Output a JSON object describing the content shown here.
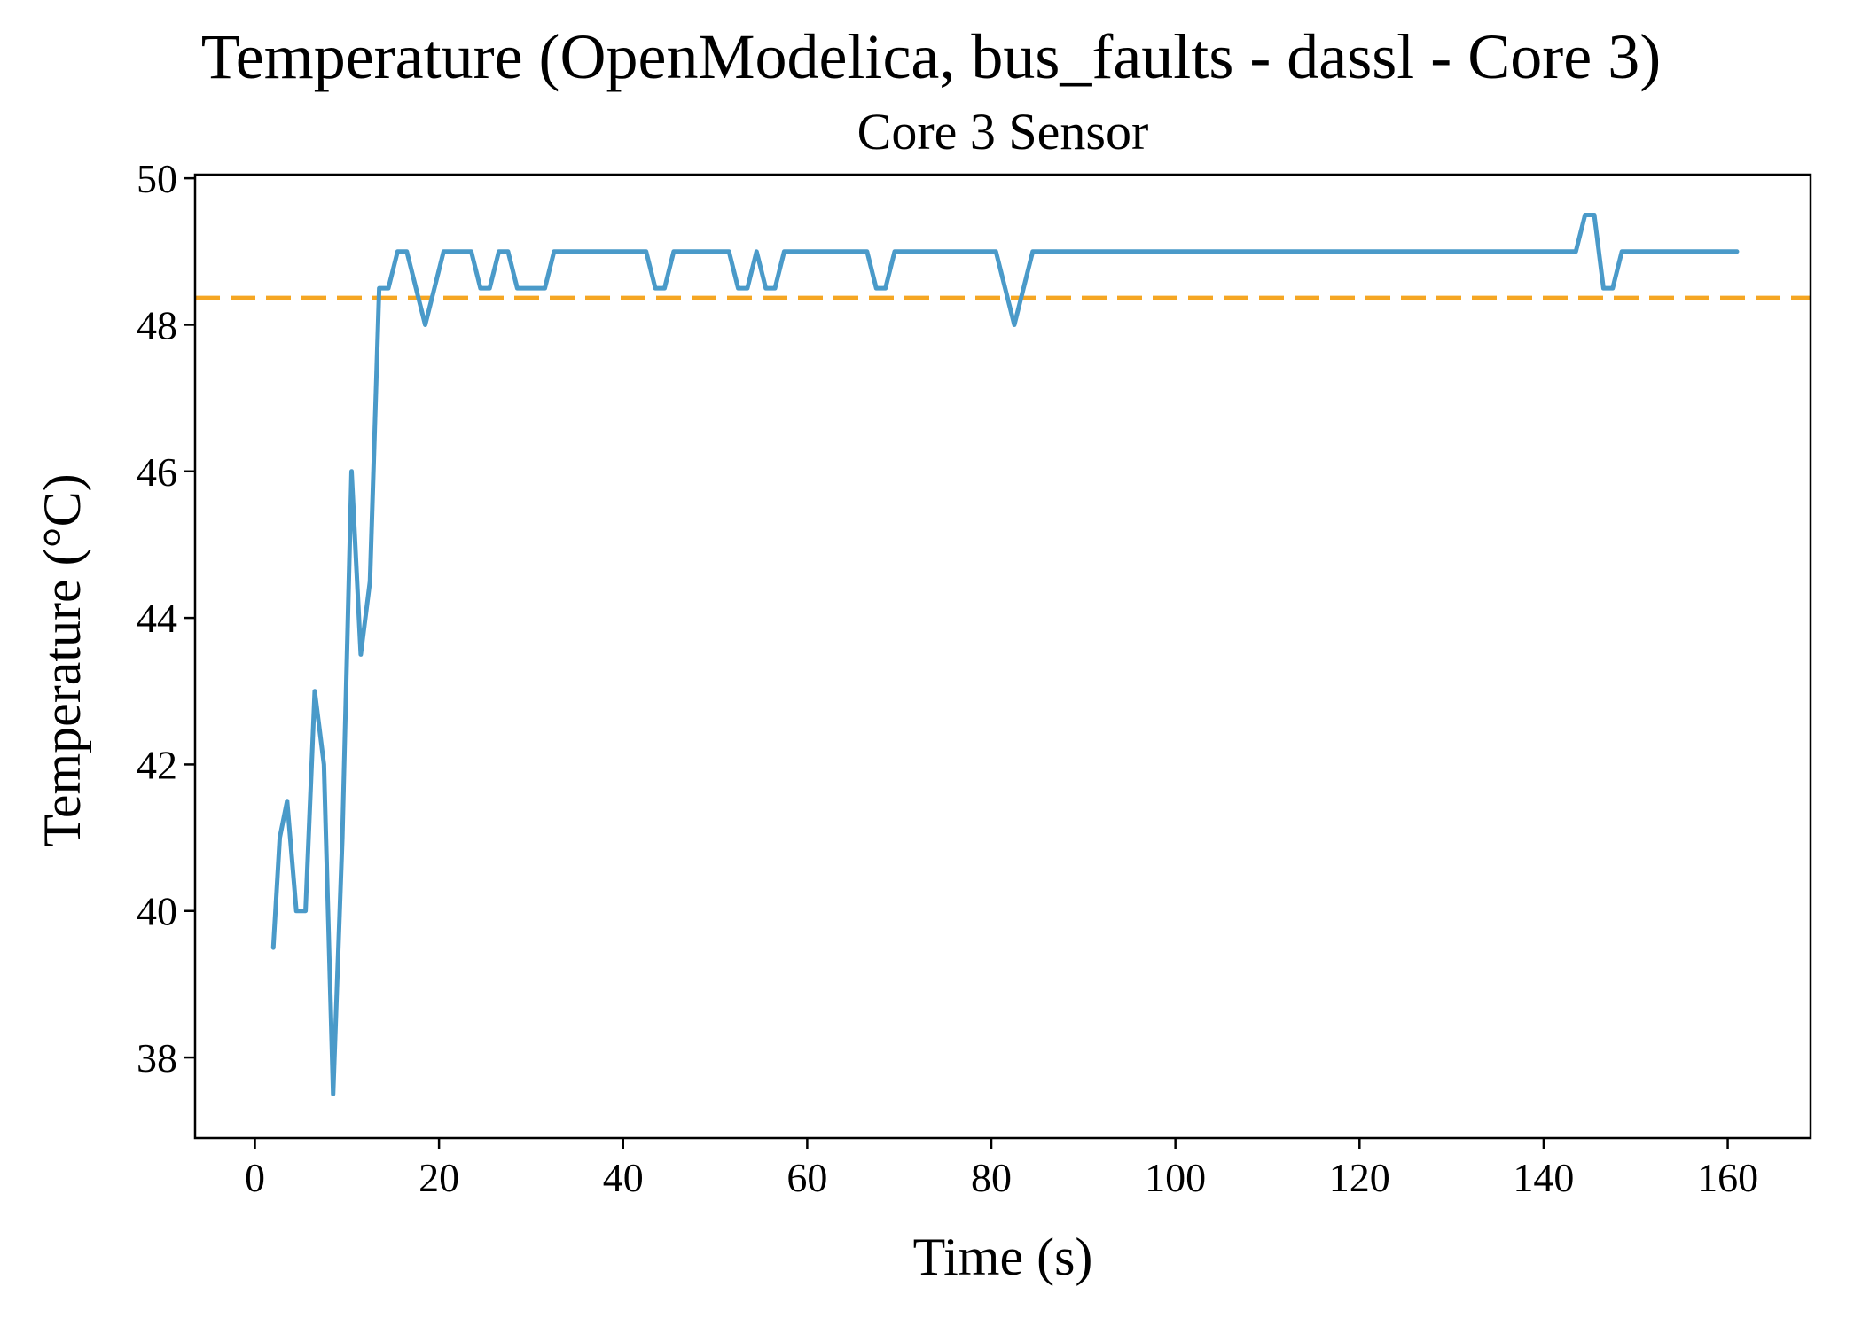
{
  "title": "Temperature (OpenModelica, bus_faults - dassl - Core 3)",
  "chart_data": {
    "type": "line",
    "subtitle": "Core 3 Sensor",
    "xlabel": "Time (s)",
    "ylabel": "Temperature (°C)",
    "xlim": [
      -6.5,
      169
    ],
    "ylim": [
      36.9,
      50.05
    ],
    "xticks": [
      0,
      20,
      40,
      60,
      80,
      100,
      120,
      140,
      160
    ],
    "yticks": [
      38,
      40,
      42,
      44,
      46,
      48,
      50
    ],
    "grid": false,
    "legend": "none",
    "series": [
      {
        "color": "#4a9ac9",
        "x": [
          2,
          2.7,
          3.5,
          4.5,
          5.5,
          6.5,
          7.5,
          8.5,
          9.5,
          10.5,
          11.5,
          12.5,
          13.5,
          14.5,
          15.5,
          16.5,
          17.5,
          18.5,
          19.5,
          20.5,
          21.5,
          22.5,
          23.5,
          24.5,
          25.5,
          26.5,
          27.5,
          28.5,
          29.5,
          30.5,
          31.5,
          32.5,
          42.5,
          43.5,
          44.5,
          45.5,
          51.5,
          52.5,
          53.5,
          54.5,
          55.5,
          56.5,
          57.5,
          66.5,
          67.5,
          68.5,
          69.5,
          80.5,
          81.5,
          82.5,
          83.5,
          84.5,
          143.5,
          144.5,
          145.5,
          146.5,
          147.5,
          148.5,
          161
        ],
        "y": [
          39.5,
          41.0,
          41.5,
          40.0,
          40.0,
          43.0,
          42.0,
          37.5,
          41.0,
          46.0,
          43.5,
          44.5,
          48.5,
          48.5,
          49.0,
          49.0,
          48.5,
          48.0,
          48.5,
          49.0,
          49.0,
          49.0,
          49.0,
          48.5,
          48.5,
          49.0,
          49.0,
          48.5,
          48.5,
          48.5,
          48.5,
          49.0,
          49.0,
          48.5,
          48.5,
          49.0,
          49.0,
          48.5,
          48.5,
          49.0,
          48.5,
          48.5,
          49.0,
          49.0,
          48.5,
          48.5,
          49.0,
          49.0,
          48.5,
          48.0,
          48.5,
          49.0,
          49.0,
          49.5,
          49.5,
          48.5,
          48.5,
          49.0,
          49.0
        ]
      }
    ],
    "reference_lines": [
      {
        "y": 48.37,
        "style": "dashed",
        "color": "#f5a623"
      }
    ]
  }
}
